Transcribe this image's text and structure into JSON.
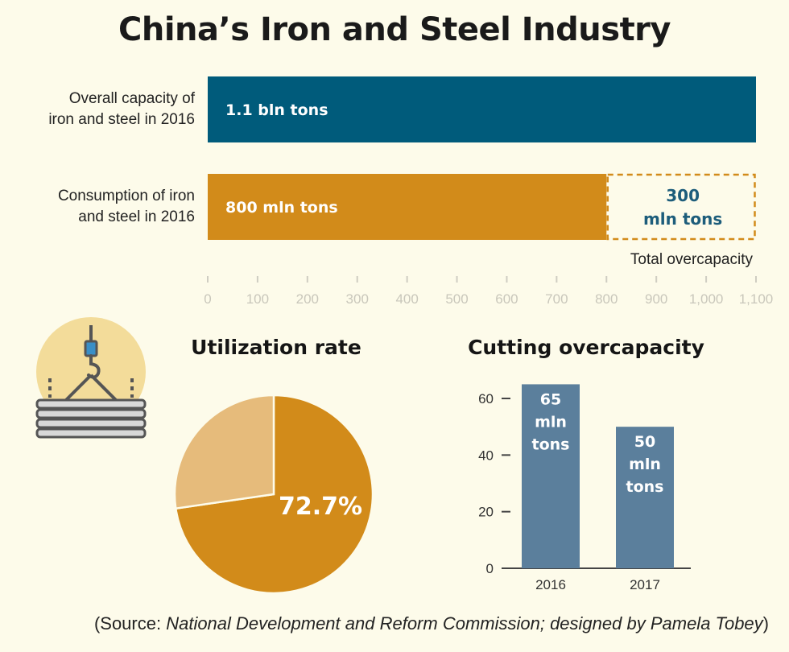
{
  "title": "China’s Iron and Steel Industry",
  "source": {
    "prefix": "(Source: ",
    "body": "National Development and Reform Commission; designed by Pamela Tobey",
    "suffix": ")"
  },
  "colors": {
    "capacity": "#005b7b",
    "consumption": "#d28b1a",
    "overcapacity_text": "#1d5d7b",
    "pie_light": "#e6bb7b",
    "columns": "#5b7f9c",
    "background": "#fdfbea",
    "icon_circle": "#f3dc9a"
  },
  "icon": "crane-hook-steel-coil-icon",
  "chart_data": [
    {
      "type": "bar",
      "orientation": "horizontal",
      "categories": [
        [
          "Overall capacity of",
          "iron and steel in 2016"
        ],
        [
          "Consumption of iron",
          "and steel in 2016"
        ]
      ],
      "values": [
        1100,
        800
      ],
      "value_labels": [
        "1.1 bln tons",
        "800 mln tons"
      ],
      "overcapacity": {
        "value": 300,
        "label_lines": [
          "300",
          "mln tons"
        ],
        "caption": "Total overcapacity"
      },
      "xlim": [
        0,
        1100
      ],
      "xticks": [
        0,
        100,
        200,
        300,
        400,
        500,
        600,
        700,
        800,
        900,
        1000,
        1100
      ],
      "xtick_labels": [
        "0",
        "100",
        "200",
        "300",
        "400",
        "500",
        "600",
        "700",
        "800",
        "900",
        "1,000",
        "1,100"
      ]
    },
    {
      "type": "pie",
      "title": "Utilization rate",
      "slices": [
        {
          "value": 72.7,
          "label": "72.7%"
        },
        {
          "value": 27.3,
          "label": ""
        }
      ]
    },
    {
      "type": "bar",
      "title": "Cutting overcapacity",
      "categories": [
        "2016",
        "2017"
      ],
      "values": [
        65,
        50
      ],
      "value_labels": [
        [
          "65",
          "mln",
          "tons"
        ],
        [
          "50",
          "mln",
          "tons"
        ]
      ],
      "ylim": [
        0,
        70
      ],
      "yticks": [
        0,
        20,
        40,
        60
      ]
    }
  ]
}
